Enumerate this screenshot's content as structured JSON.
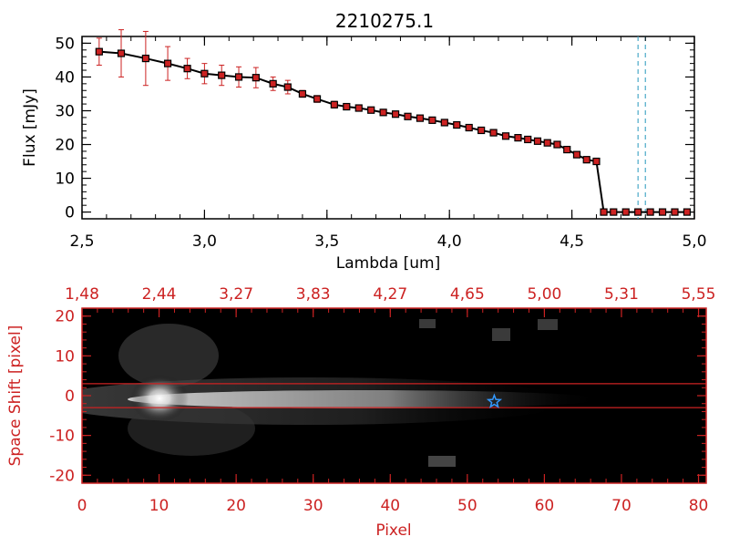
{
  "chart_data": [
    {
      "type": "line",
      "title": "2210275.1",
      "xlabel": "Lambda [um]",
      "ylabel": "Flux [mJy]",
      "xlim": [
        2.5,
        5.0
      ],
      "ylim": [
        -2,
        52
      ],
      "x_ticks": [
        "2.5",
        "3.0",
        "3.5",
        "4.0",
        "4.5",
        "5.0"
      ],
      "y_ticks": [
        "0",
        "10",
        "20",
        "30",
        "40",
        "50"
      ],
      "series": [
        {
          "marker": "square",
          "line_color": "#000000",
          "marker_color": "#cc2222",
          "error_color": "#cc2222",
          "x": [
            2.57,
            2.66,
            2.76,
            2.85,
            2.93,
            3.0,
            3.07,
            3.14,
            3.21,
            3.28,
            3.34,
            3.4,
            3.46,
            3.53,
            3.58,
            3.63,
            3.68,
            3.73,
            3.78,
            3.83,
            3.88,
            3.93,
            3.98,
            4.03,
            4.08,
            4.13,
            4.18,
            4.23,
            4.28,
            4.32,
            4.36,
            4.4,
            4.44,
            4.48,
            4.52,
            4.56,
            4.6,
            4.63,
            4.67,
            4.72,
            4.77,
            4.82,
            4.87,
            4.92,
            4.97
          ],
          "y": [
            47.5,
            47.0,
            45.5,
            44.0,
            42.5,
            41.0,
            40.5,
            40.0,
            39.8,
            38.0,
            37.0,
            35.0,
            33.5,
            31.8,
            31.2,
            30.8,
            30.2,
            29.5,
            29.0,
            28.3,
            27.8,
            27.2,
            26.5,
            25.8,
            25.0,
            24.2,
            23.5,
            22.5,
            22.0,
            21.5,
            21.0,
            20.5,
            20.0,
            18.5,
            17.0,
            15.5,
            15.0,
            0,
            0,
            0,
            0,
            0,
            0,
            0,
            0
          ],
          "yerr": [
            4,
            7,
            8,
            5,
            3,
            3,
            3,
            3,
            3,
            2,
            2,
            1,
            1,
            1,
            0.5,
            0.5,
            0.5,
            0.5,
            0.5,
            0.5,
            0.5,
            0.5,
            0.5,
            0.5,
            0.5,
            0.5,
            0.5,
            0.5,
            0.5,
            0.5,
            0.5,
            0.5,
            0.5,
            0.5,
            0.5,
            0.5,
            0.5,
            0,
            0,
            0,
            0,
            0,
            0,
            0,
            0
          ]
        }
      ],
      "vlines": [
        4.77,
        4.8
      ],
      "vline_color": "#4aa8c8"
    },
    {
      "type": "heatmap",
      "xlabel": "Pixel",
      "ylabel": "Space Shift [pixel]",
      "xlim": [
        0,
        81
      ],
      "ylim": [
        -22,
        22
      ],
      "x_ticks": [
        "0",
        "10",
        "20",
        "30",
        "40",
        "50",
        "60",
        "70",
        "80"
      ],
      "y_ticks": [
        "-20",
        "-10",
        "0",
        "10",
        "20"
      ],
      "top_axis_ticks": [
        "1.48",
        "2.44",
        "3.27",
        "3.83",
        "4.27",
        "4.65",
        "5.00",
        "5.31",
        "5.55"
      ],
      "extraction_band": [
        3,
        -3
      ],
      "star_marker": {
        "pixel": 53.5,
        "shift": -1.5,
        "color": "#3399ff"
      },
      "axis_color": "#cc2222",
      "colormap": "grayscale"
    }
  ]
}
